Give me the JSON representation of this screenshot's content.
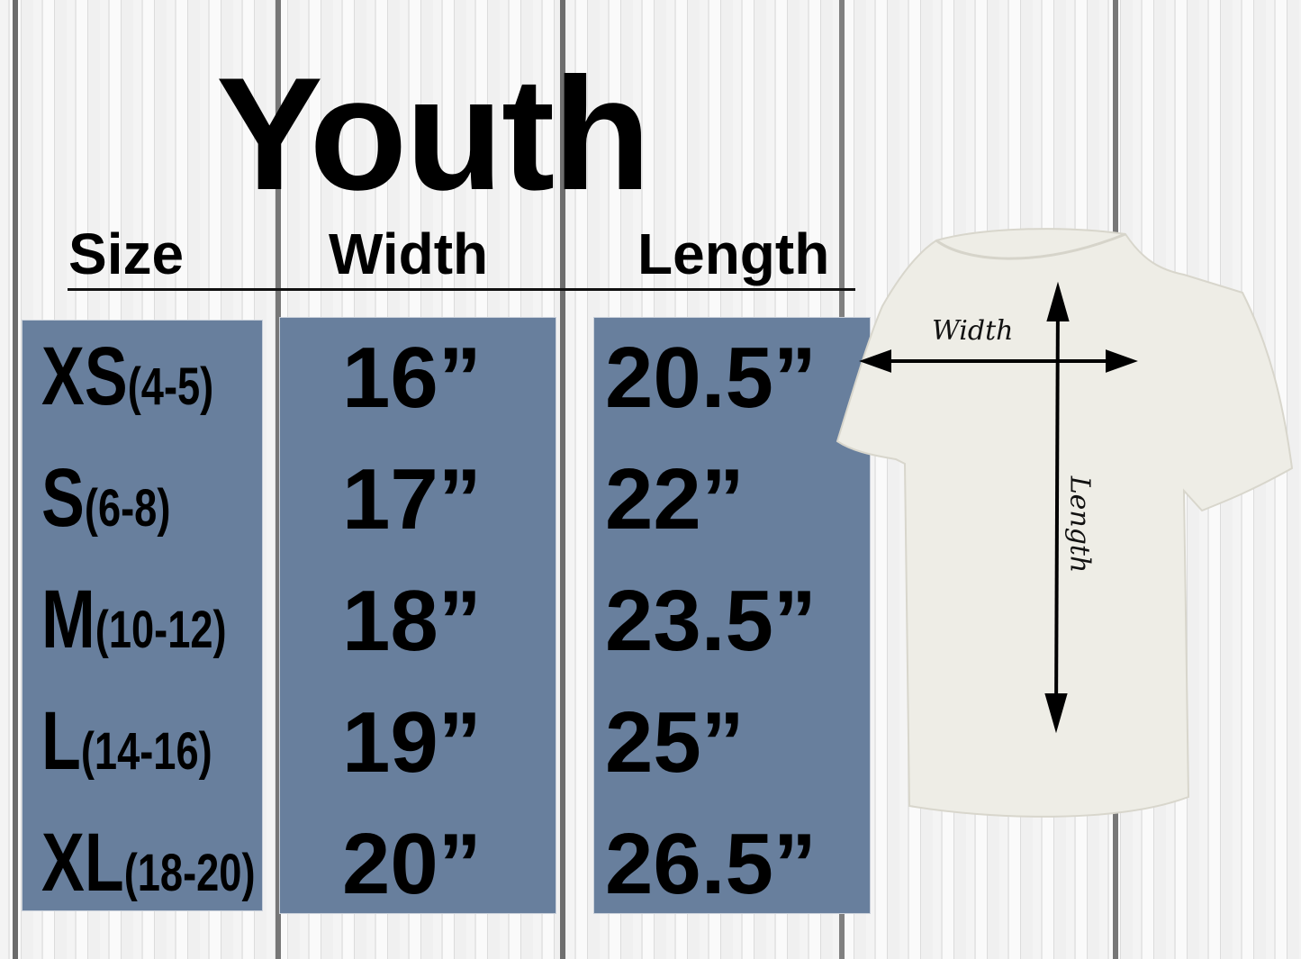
{
  "title": "Youth",
  "headers": {
    "size": "Size",
    "width": "Width",
    "length": "Length"
  },
  "colors": {
    "box": "#687f9d",
    "text": "#000000",
    "shirt": "#eeede6"
  },
  "rows": [
    {
      "size": "XS",
      "age": "(4-5)",
      "width": "16”",
      "length": "20.5”"
    },
    {
      "size": "S",
      "age": "(6-8)",
      "width": "17”",
      "length": "22”"
    },
    {
      "size": "M",
      "age": "(10-12)",
      "width": "18”",
      "length": "23.5”"
    },
    {
      "size": "L",
      "age": "(14-16)",
      "width": "19”",
      "length": "25”"
    },
    {
      "size": "XL",
      "age": "(18-20)",
      "width": "20”",
      "length": "26.5”"
    }
  ],
  "diagram": {
    "width_label": "Width",
    "length_label": "Length",
    "icon": "t-shirt-icon"
  }
}
